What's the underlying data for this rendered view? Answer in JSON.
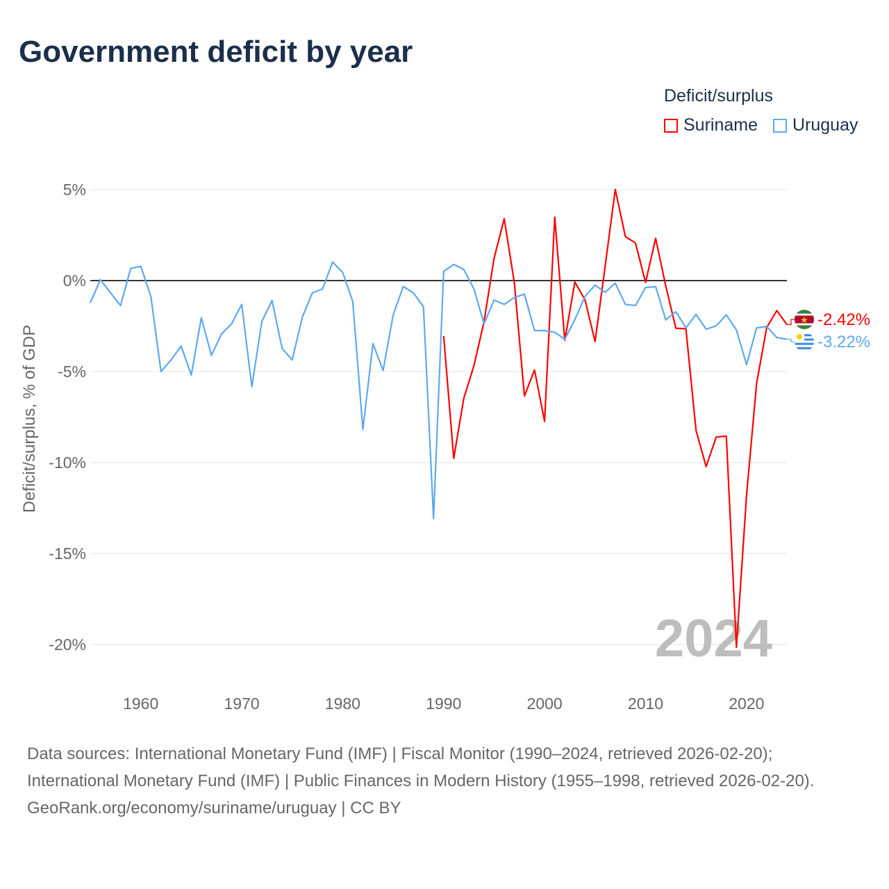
{
  "title": "Government deficit by year",
  "legend": {
    "title": "Deficit/surplus",
    "items": [
      {
        "label": "Suriname",
        "color": "#ff0000"
      },
      {
        "label": "Uruguay",
        "color": "#5da8ee"
      }
    ]
  },
  "watermark_year": "2024",
  "footer": {
    "sources": "Data sources: International Monetary Fund (IMF) | Fiscal Monitor (1990–2024, retrieved 2026-02-20); International Monetary Fund (IMF) | Public Finances in Modern History (1955–1998, retrieved 2026-02-20).",
    "credit": "GeoRank.org/economy/suriname/uruguay | CC BY"
  },
  "chart_data": {
    "type": "line",
    "title": "Government deficit by year",
    "xlabel": "",
    "ylabel": "Deficit/surplus, % of GDP",
    "xlim": [
      1955,
      2024
    ],
    "ylim": [
      -21.5,
      5
    ],
    "xticks": [
      1960,
      1970,
      1980,
      1990,
      2000,
      2010,
      2020
    ],
    "yticks": [
      5,
      0,
      -5,
      -10,
      -15,
      -20
    ],
    "ytick_labels": [
      "5%",
      "0%",
      "-5%",
      "-10%",
      "-15%",
      "-20%"
    ],
    "grid": true,
    "legend_position": "top-right",
    "series": [
      {
        "name": "Suriname",
        "color": "#ff0000",
        "end_label": "-2.42%",
        "x": [
          1990,
          1991,
          1992,
          1993,
          1994,
          1995,
          1996,
          1997,
          1998,
          1999,
          2000,
          2001,
          2002,
          2003,
          2004,
          2005,
          2006,
          2007,
          2008,
          2009,
          2010,
          2011,
          2012,
          2013,
          2014,
          2015,
          2016,
          2017,
          2018,
          2019,
          2020,
          2021,
          2022,
          2023,
          2024
        ],
        "y": [
          -3.05,
          -9.77,
          -6.46,
          -4.68,
          -2.26,
          1.23,
          3.4,
          -0.1,
          -6.34,
          -4.91,
          -7.74,
          3.49,
          -3.28,
          -0.08,
          -1.06,
          -3.35,
          0.79,
          5.01,
          2.42,
          2.06,
          -0.1,
          2.32,
          -0.3,
          -2.62,
          -2.65,
          -8.24,
          -10.22,
          -8.6,
          -8.55,
          -20.15,
          -11.8,
          -5.64,
          -2.58,
          -1.65,
          -2.42
        ]
      },
      {
        "name": "Uruguay",
        "color": "#5da8ee",
        "end_label": "-3.22%",
        "x": [
          1955,
          1956,
          1957,
          1958,
          1959,
          1960,
          1961,
          1962,
          1963,
          1964,
          1965,
          1966,
          1967,
          1968,
          1969,
          1970,
          1971,
          1972,
          1973,
          1974,
          1975,
          1976,
          1977,
          1978,
          1979,
          1980,
          1981,
          1982,
          1983,
          1984,
          1985,
          1986,
          1987,
          1988,
          1989,
          1990,
          1991,
          1992,
          1993,
          1994,
          1995,
          1996,
          1997,
          1998,
          1999,
          2000,
          2001,
          2002,
          2003,
          2004,
          2005,
          2006,
          2007,
          2008,
          2009,
          2010,
          2011,
          2012,
          2013,
          2014,
          2015,
          2016,
          2017,
          2018,
          2019,
          2020,
          2021,
          2022,
          2023,
          2024
        ],
        "y": [
          -1.22,
          0.05,
          -0.67,
          -1.37,
          0.66,
          0.79,
          -0.87,
          -5.0,
          -4.36,
          -3.6,
          -5.19,
          -2.04,
          -4.11,
          -2.93,
          -2.37,
          -1.31,
          -5.83,
          -2.24,
          -1.09,
          -3.73,
          -4.36,
          -2.01,
          -0.67,
          -0.46,
          1.02,
          0.45,
          -1.15,
          -8.18,
          -3.47,
          -4.94,
          -1.88,
          -0.33,
          -0.67,
          -1.44,
          -13.08,
          0.51,
          0.89,
          0.61,
          -0.46,
          -2.37,
          -1.07,
          -1.31,
          -0.93,
          -0.74,
          -2.75,
          -2.75,
          -2.84,
          -3.22,
          -2.14,
          -0.87,
          -0.25,
          -0.64,
          -0.14,
          -1.31,
          -1.37,
          -0.38,
          -0.33,
          -2.16,
          -1.71,
          -2.6,
          -1.86,
          -2.67,
          -2.49,
          -1.88,
          -2.71,
          -4.62,
          -2.6,
          -2.52,
          -3.13,
          -3.22
        ]
      }
    ]
  }
}
